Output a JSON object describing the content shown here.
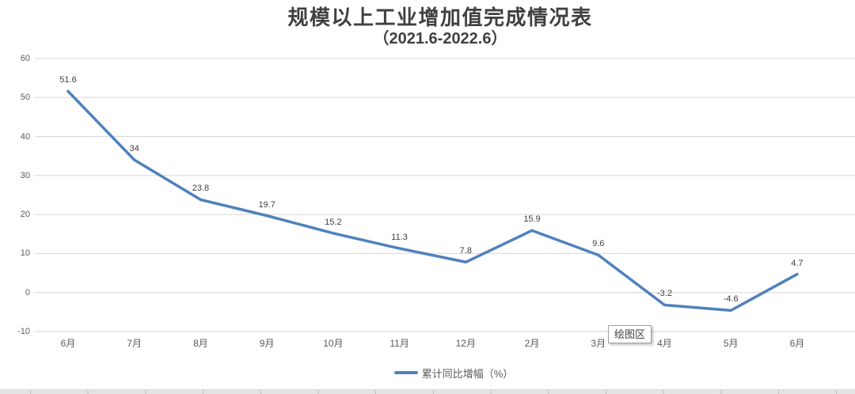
{
  "chart": {
    "title_line1": "规模以上工业增加值完成情况表",
    "title_line2": "（2021.6-2022.6）"
  },
  "legend": {
    "label": "累计同比增幅（%）"
  },
  "tooltip": {
    "text": "绘图区"
  },
  "colors": {
    "line": "#4F81BD",
    "gridline": "#D6D6D6",
    "title_text": "#404040",
    "axis_text": "#595959",
    "data_label_text": "#404040"
  },
  "chart_data": {
    "type": "line",
    "title": "规模以上工业增加值完成情况表（2021.6-2022.6）",
    "categories": [
      "6月",
      "7月",
      "8月",
      "9月",
      "10月",
      "11月",
      "12月",
      "2月",
      "3月",
      "4月",
      "5月",
      "6月"
    ],
    "series": [
      {
        "name": "累计同比增幅（%）",
        "values": [
          51.6,
          34,
          23.8,
          19.7,
          15.2,
          11.3,
          7.8,
          15.9,
          9.6,
          -3.2,
          -4.6,
          4.7
        ]
      }
    ],
    "xlabel": "",
    "ylabel": "",
    "ylim": [
      -10,
      60
    ],
    "yticks": [
      -10,
      0,
      10,
      20,
      30,
      40,
      50,
      60
    ],
    "grid": true,
    "legend_position": "bottom",
    "data_labels": true
  }
}
